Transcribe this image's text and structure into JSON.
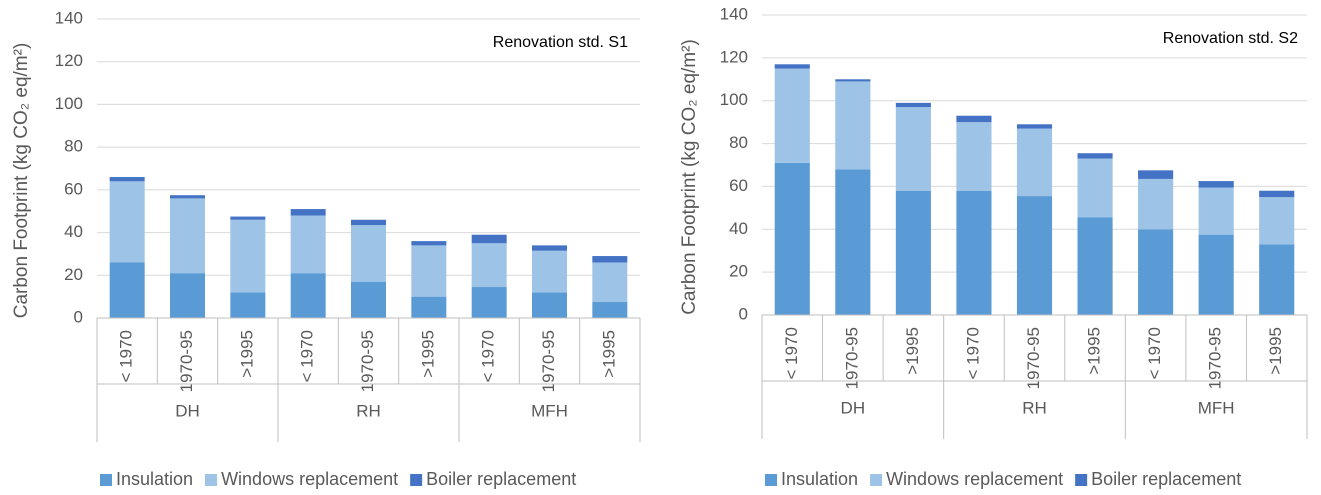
{
  "chart_data": [
    {
      "type": "bar",
      "stacked": true,
      "annotation": "Renovation std. S1",
      "y_label": "Carbon Footprint (kg CO₂ eq/m²)",
      "groups": [
        "DH",
        "RH",
        "MFH"
      ],
      "categories": [
        "< 1970",
        "1970-95",
        ">1995",
        "< 1970",
        "1970-95",
        ">1995",
        "< 1970",
        "1970-95",
        ">1995"
      ],
      "series": [
        {
          "name": "Insulation",
          "color": "#5b9bd5",
          "values": [
            26,
            21,
            12,
            21,
            17,
            10,
            14.5,
            12,
            7.5
          ]
        },
        {
          "name": "Windows replacement",
          "color": "#9dc3e6",
          "values": [
            38,
            35,
            34,
            27,
            26.5,
            24,
            20.5,
            19.5,
            18.5
          ]
        },
        {
          "name": "Boiler replacement",
          "color": "#4472c4",
          "values": [
            2,
            1.5,
            1.5,
            3,
            2.5,
            2,
            4,
            2.5,
            3
          ]
        }
      ],
      "ylim": [
        0,
        140
      ],
      "yticks": [
        0,
        20,
        40,
        60,
        80,
        100,
        120,
        140
      ],
      "grid": true,
      "legend": "bottom"
    },
    {
      "type": "bar",
      "stacked": true,
      "annotation": "Renovation std. S2",
      "y_label": "Carbon Footprint (kg CO₂ eq/m²)",
      "groups": [
        "DH",
        "RH",
        "MFH"
      ],
      "categories": [
        "< 1970",
        "1970-95",
        ">1995",
        "< 1970",
        "1970-95",
        ">1995",
        "< 1970",
        "1970-95",
        ">1995"
      ],
      "series": [
        {
          "name": "Insulation",
          "color": "#5b9bd5",
          "values": [
            71,
            68,
            58,
            58,
            55.5,
            45.5,
            40,
            37.5,
            33
          ]
        },
        {
          "name": "Windows replacement",
          "color": "#9dc3e6",
          "values": [
            44,
            41,
            39,
            32,
            31.5,
            27.5,
            23.5,
            22,
            22
          ]
        },
        {
          "name": "Boiler replacement",
          "color": "#4472c4",
          "values": [
            2,
            1,
            2,
            3,
            2,
            2.5,
            4,
            3,
            3
          ]
        }
      ],
      "ylim": [
        0,
        140
      ],
      "yticks": [
        0,
        20,
        40,
        60,
        80,
        100,
        120,
        140
      ],
      "grid": true,
      "legend": "bottom"
    }
  ]
}
